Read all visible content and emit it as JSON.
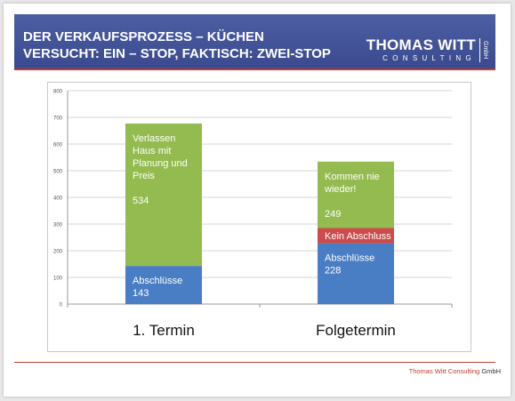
{
  "header": {
    "title_line1": "DER VERKAUFSPROZESS – KÜCHEN",
    "title_line2": "VERSUCHT: EIN – STOP, FAKTISCH: ZWEI-STOP"
  },
  "logo": {
    "name": "THOMAS WITT",
    "sub": "CONSULTING",
    "suffix": "GmbH"
  },
  "footer": {
    "brand": "Thomas Witt Consulting",
    "suffix": "GmbH"
  },
  "colors": {
    "header_bg": "#3f4f93",
    "accent_red": "#c23a32",
    "bar_blue": "#4a7ec4",
    "bar_green": "#93bb4f",
    "bar_red": "#cc4b4b"
  },
  "chart_data": {
    "type": "bar",
    "stacked": true,
    "categories": [
      "1. Termin",
      "Folgetermin"
    ],
    "ylim": [
      0,
      800
    ],
    "yticks": [
      "0",
      "100",
      "200",
      "300",
      "400",
      "500",
      "600",
      "700",
      "800"
    ],
    "grid": true,
    "series": [
      {
        "values": [
          143,
          228
        ],
        "color": "#4a7ec4",
        "labels": [
          [
            "Abschlüsse",
            "143"
          ],
          [
            "Abschlüsse",
            "228"
          ]
        ]
      },
      {
        "values": [
          0,
          57
        ],
        "color": "#cc4b4b",
        "labels": [
          [],
          [
            "Kein Abschluss"
          ]
        ]
      },
      {
        "values": [
          534,
          249
        ],
        "color": "#93bb4f",
        "labels": [
          [
            "Verlassen",
            "Haus mit",
            "Planung und",
            "Preis",
            "",
            "534"
          ],
          [
            "Kommen nie",
            "wieder!",
            "",
            "249"
          ]
        ]
      }
    ]
  }
}
